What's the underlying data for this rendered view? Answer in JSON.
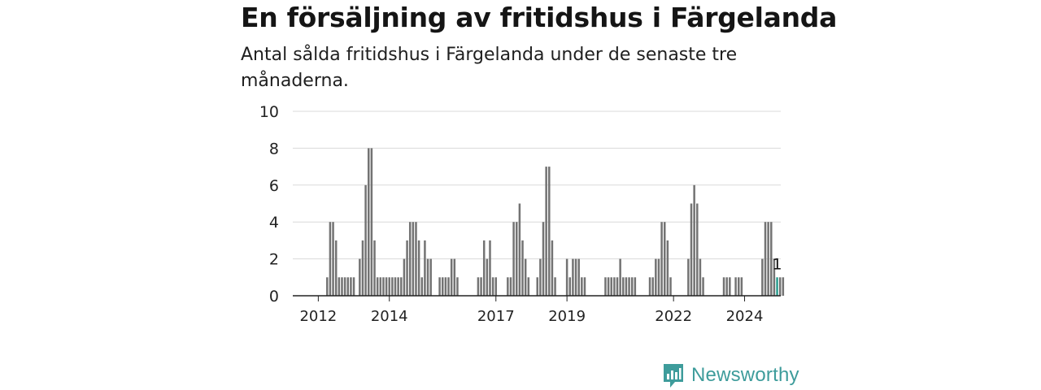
{
  "title": "En försäljning av fritidshus i Färgelanda",
  "subtitle": "Antal sålda fritidshus i Färgelanda under de senaste tre månaderna.",
  "brand": {
    "name": "Newsworthy",
    "color": "#3e9c9b"
  },
  "chart_data": {
    "type": "bar",
    "title": "En försäljning av fritidshus i Färgelanda",
    "subtitle": "Antal sålda fritidshus i Färgelanda under de senaste tre månaderna.",
    "xlabel": "",
    "ylabel": "",
    "ylim": [
      0,
      10
    ],
    "yticks": [
      0,
      2,
      4,
      6,
      8,
      10
    ],
    "grid": true,
    "bar_color": "#737373",
    "highlight_color": "#2a9d8f",
    "xticks": [
      {
        "label": "2012",
        "index": 8
      },
      {
        "label": "2014",
        "index": 32
      },
      {
        "label": "2017",
        "index": 68
      },
      {
        "label": "2019",
        "index": 92
      },
      {
        "label": "2022",
        "index": 128
      },
      {
        "label": "2024",
        "index": 152
      }
    ],
    "highlight_index": 163,
    "highlight_label": "1",
    "values": [
      0,
      0,
      0,
      0,
      0,
      0,
      0,
      0,
      0,
      0,
      0,
      1,
      4,
      4,
      3,
      1,
      1,
      1,
      1,
      1,
      1,
      0,
      2,
      3,
      6,
      8,
      8,
      3,
      1,
      1,
      1,
      1,
      1,
      1,
      1,
      1,
      1,
      2,
      3,
      4,
      4,
      4,
      3,
      1,
      3,
      2,
      2,
      0,
      0,
      1,
      1,
      1,
      1,
      2,
      2,
      1,
      0,
      0,
      0,
      0,
      0,
      0,
      1,
      1,
      3,
      2,
      3,
      1,
      1,
      0,
      0,
      0,
      1,
      1,
      4,
      4,
      5,
      3,
      2,
      1,
      0,
      0,
      1,
      2,
      4,
      7,
      7,
      3,
      1,
      0,
      0,
      0,
      2,
      1,
      2,
      2,
      2,
      1,
      1,
      0,
      0,
      0,
      0,
      0,
      0,
      1,
      1,
      1,
      1,
      1,
      2,
      1,
      1,
      1,
      1,
      1,
      0,
      0,
      0,
      0,
      1,
      1,
      2,
      2,
      4,
      4,
      3,
      1,
      0,
      0,
      0,
      0,
      0,
      2,
      5,
      6,
      5,
      2,
      1,
      0,
      0,
      0,
      0,
      0,
      0,
      1,
      1,
      1,
      0,
      1,
      1,
      1,
      0,
      0,
      0,
      0,
      0,
      0,
      2,
      4,
      4,
      4,
      2,
      1,
      1,
      1
    ]
  }
}
